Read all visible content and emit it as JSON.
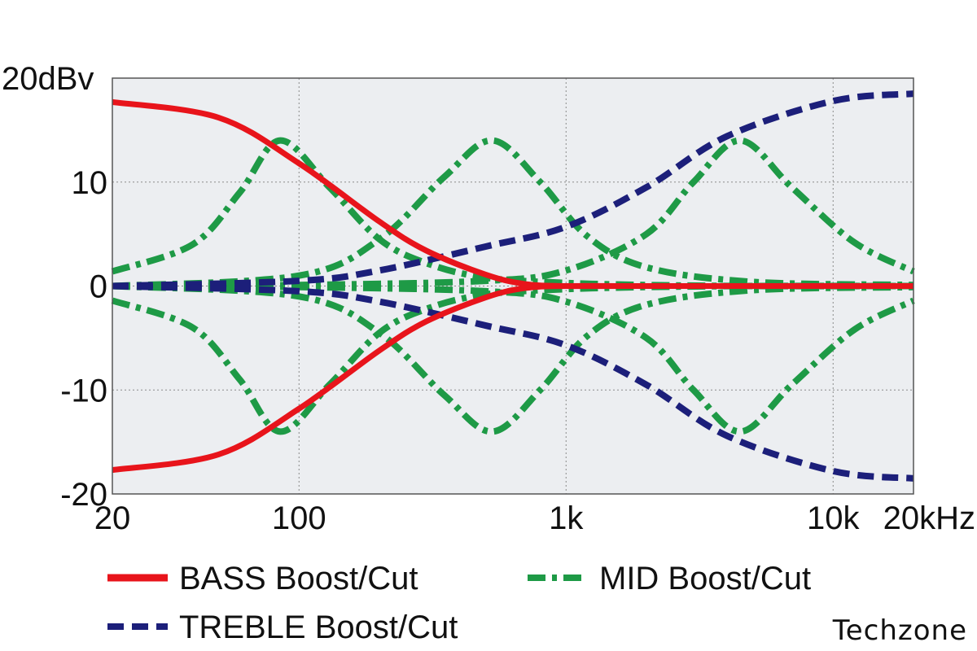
{
  "chart_data": {
    "type": "line",
    "x_scale": "log",
    "xlim": [
      20,
      20000
    ],
    "ylim": [
      -20,
      20
    ],
    "grid": true,
    "background": "#eceef1",
    "x_ticks": [
      {
        "value": 20,
        "label": "20"
      },
      {
        "value": 100,
        "label": "100"
      },
      {
        "value": 1000,
        "label": "1k"
      },
      {
        "value": 10000,
        "label": "10k"
      },
      {
        "value": 20000,
        "label": "20kHz"
      }
    ],
    "y_ticks": [
      {
        "value": 20,
        "label": "20dBv"
      },
      {
        "value": 10,
        "label": "10"
      },
      {
        "value": 0,
        "label": "0"
      },
      {
        "value": -10,
        "label": "-10"
      },
      {
        "value": -20,
        "label": "-20"
      }
    ],
    "legend_placement": "bottom",
    "legend": [
      {
        "key": "bass",
        "label": "BASS Boost/Cut",
        "color": "#e8141b",
        "style": "solid"
      },
      {
        "key": "mid",
        "label": "MID Boost/Cut",
        "color": "#1e9a46",
        "style": "dashdot"
      },
      {
        "key": "treble",
        "label": "TREBLE Boost/Cut",
        "color": "#1c1f7a",
        "style": "dashed"
      }
    ],
    "series": [
      {
        "key": "bass",
        "style": "solid",
        "color": "#e8141b",
        "x": [
          20,
          50,
          100,
          200,
          300,
          500,
          700,
          1000,
          2000,
          20000
        ],
        "y": [
          17.7,
          16.2,
          11.8,
          6.2,
          3.4,
          1.1,
          0.2,
          0,
          0,
          0
        ]
      },
      {
        "key": "bass",
        "style": "solid",
        "color": "#e8141b",
        "x": [
          20,
          50,
          100,
          200,
          300,
          500,
          700,
          1000,
          2000,
          20000
        ],
        "y": [
          -17.7,
          -16.2,
          -11.8,
          -6.2,
          -3.4,
          -1.1,
          -0.2,
          0,
          0,
          0
        ]
      },
      {
        "key": "treble",
        "style": "dashed",
        "color": "#1c1f7a",
        "x": [
          20,
          100,
          200,
          500,
          1000,
          2000,
          4000,
          10000,
          20000
        ],
        "y": [
          0,
          0.5,
          1.5,
          3.8,
          5.7,
          9.5,
          14.4,
          17.8,
          18.5
        ]
      },
      {
        "key": "treble",
        "style": "dashed",
        "color": "#1c1f7a",
        "x": [
          20,
          100,
          200,
          500,
          1000,
          2000,
          4000,
          10000,
          20000
        ],
        "y": [
          0,
          -0.5,
          -1.5,
          -3.8,
          -5.7,
          -9.5,
          -14.4,
          -17.8,
          -18.5
        ]
      },
      {
        "key": "mid",
        "style": "dashdot",
        "color": "#1e9a46",
        "x": [
          20,
          40,
          60,
          85,
          130,
          200,
          300,
          500,
          1000,
          2000,
          5000,
          20000
        ],
        "y": [
          1.4,
          4.0,
          9.0,
          14.0,
          9.5,
          4.5,
          2.2,
          0.8,
          0.3,
          0.1,
          0,
          0
        ]
      },
      {
        "key": "mid",
        "style": "dashdot",
        "color": "#1e9a46",
        "x": [
          20,
          40,
          60,
          85,
          130,
          200,
          300,
          500,
          1000,
          2000,
          5000,
          20000
        ],
        "y": [
          -1.4,
          -4.0,
          -9.0,
          -14.0,
          -9.5,
          -4.5,
          -2.2,
          -0.8,
          -0.3,
          -0.1,
          0,
          0
        ]
      },
      {
        "key": "mid",
        "style": "dashdot",
        "color": "#1e9a46",
        "x": [
          20,
          100,
          200,
          350,
          530,
          800,
          1200,
          2000,
          5000,
          20000
        ],
        "y": [
          0,
          1.0,
          4.5,
          10.5,
          14.0,
          10.0,
          4.8,
          1.8,
          0.4,
          0.1
        ]
      },
      {
        "key": "mid",
        "style": "dashdot",
        "color": "#1e9a46",
        "x": [
          20,
          100,
          200,
          350,
          530,
          800,
          1200,
          2000,
          5000,
          20000
        ],
        "y": [
          0,
          -1.0,
          -4.5,
          -10.5,
          -14.0,
          -10.0,
          -4.8,
          -1.8,
          -0.4,
          -0.1
        ]
      },
      {
        "key": "mid",
        "style": "dashdot",
        "color": "#1e9a46",
        "x": [
          20,
          100,
          500,
          1000,
          2000,
          3000,
          4500,
          7000,
          12000,
          20000
        ],
        "y": [
          0,
          0.1,
          0.5,
          1.5,
          5.0,
          10.0,
          14.0,
          9.5,
          4.2,
          1.4
        ]
      },
      {
        "key": "mid",
        "style": "dashdot",
        "color": "#1e9a46",
        "x": [
          20,
          100,
          500,
          1000,
          2000,
          3000,
          4500,
          7000,
          12000,
          20000
        ],
        "y": [
          0,
          -0.1,
          -0.5,
          -1.5,
          -5.0,
          -10.0,
          -14.0,
          -9.5,
          -4.2,
          -1.4
        ]
      }
    ]
  },
  "watermark": "Techzone"
}
